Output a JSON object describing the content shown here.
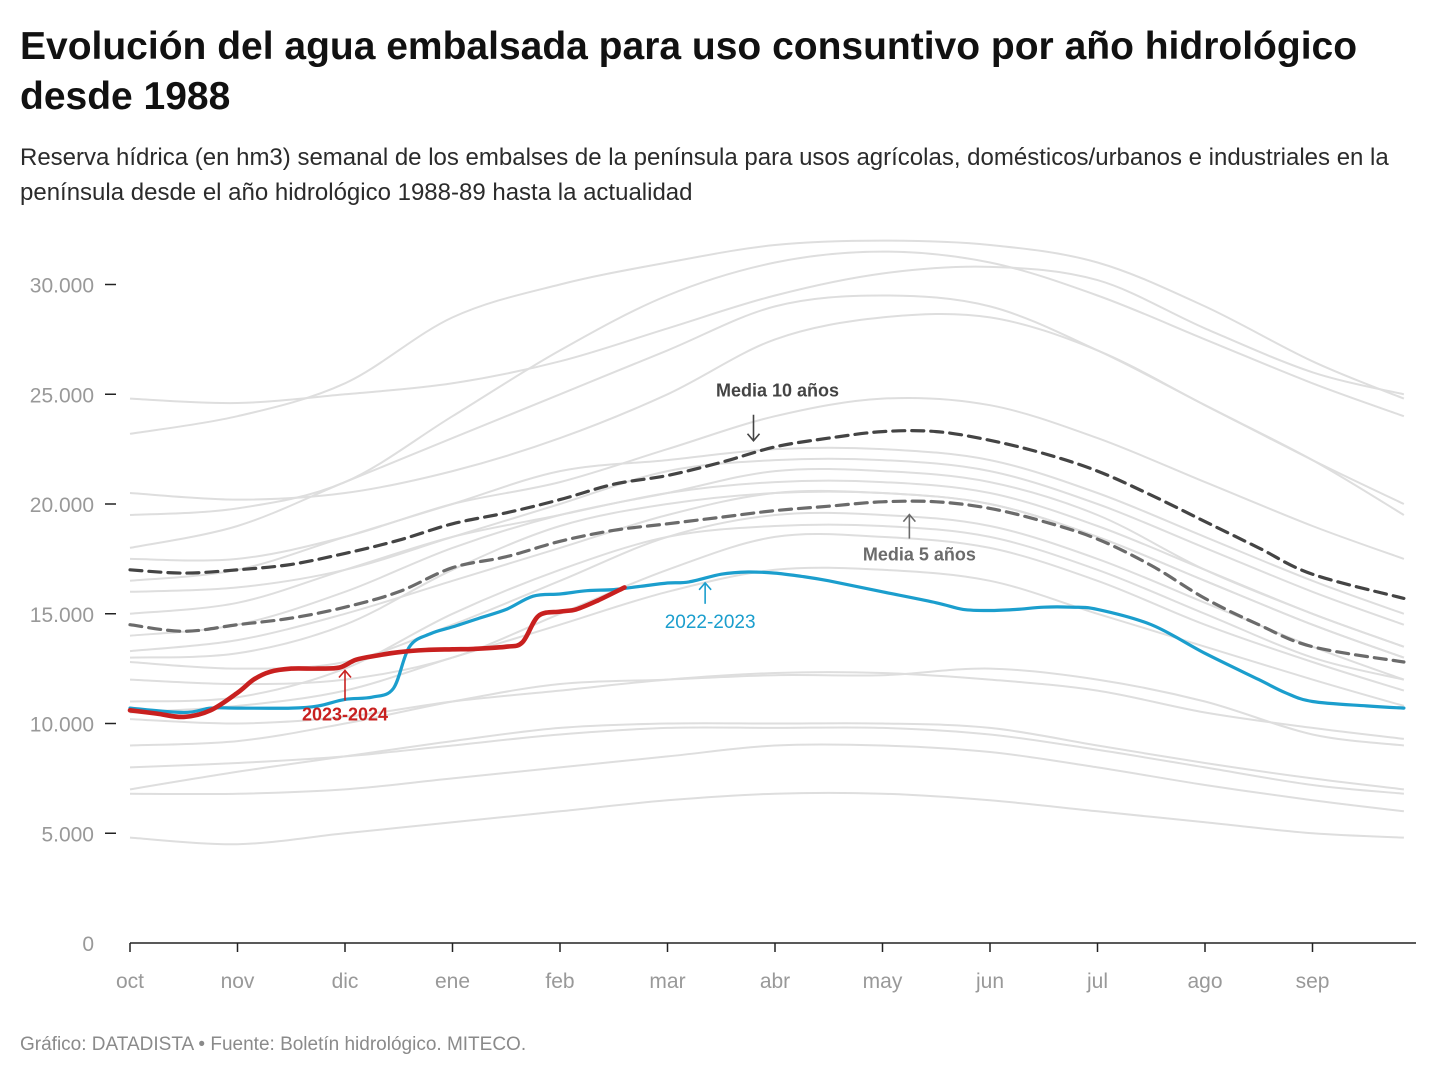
{
  "title": "Evolución del agua embalsada para uso consuntivo por año hidrológico desde 1988",
  "subtitle": "Reserva hídrica (en hm3) semanal de los embalses de la península para usos agrícolas, domésticos/urbanos e industriales en la península desde el año hidrológico 1988-89 hasta la actualidad",
  "footer": "Gráfico: DATADISTA • Fuente: Boletín hidrológico. MITECO.",
  "colors": {
    "historic": "#dedede",
    "current": "#c8201f",
    "previous": "#1b9ecd",
    "media10": "#444444",
    "media5": "#6b6b6b",
    "axis": "#222222",
    "tick_text": "#999999"
  },
  "chart_data": {
    "type": "line",
    "title": "",
    "xlabel": "",
    "ylabel": "",
    "x_unit": "months into hydrological year (0 = 1 Oct)",
    "xlim": [
      0,
      12
    ],
    "ylim": [
      0,
      32000
    ],
    "x_ticks": [
      {
        "x": 0,
        "label": "oct"
      },
      {
        "x": 1,
        "label": "nov"
      },
      {
        "x": 2,
        "label": "dic"
      },
      {
        "x": 3,
        "label": "ene"
      },
      {
        "x": 4,
        "label": "feb"
      },
      {
        "x": 5,
        "label": "mar"
      },
      {
        "x": 6,
        "label": "abr"
      },
      {
        "x": 7,
        "label": "may"
      },
      {
        "x": 8,
        "label": "jun"
      },
      {
        "x": 9,
        "label": "jul"
      },
      {
        "x": 10,
        "label": "ago"
      },
      {
        "x": 11,
        "label": "sep"
      }
    ],
    "y_ticks": [
      {
        "y": 0,
        "label": "0"
      },
      {
        "y": 5000,
        "label": "5.000"
      },
      {
        "y": 10000,
        "label": "10.000"
      },
      {
        "y": 15000,
        "label": "15.000"
      },
      {
        "y": 20000,
        "label": "20.000"
      },
      {
        "y": 25000,
        "label": "25.000"
      },
      {
        "y": 30000,
        "label": "30.000"
      }
    ],
    "grid": false,
    "historic_x": [
      0,
      1,
      2,
      3,
      4,
      5,
      6,
      7,
      8,
      9,
      10,
      11,
      11.85
    ],
    "historic_years": [
      [
        24800,
        24600,
        25000,
        25500,
        26500,
        28000,
        29500,
        30500,
        30800,
        30200,
        28000,
        26000,
        25000
      ],
      [
        23200,
        24000,
        25500,
        28500,
        30000,
        31000,
        31800,
        32000,
        31800,
        31000,
        29000,
        26500,
        24800
      ],
      [
        19500,
        19800,
        21000,
        24000,
        27000,
        29500,
        31000,
        31500,
        31000,
        29500,
        27500,
        25500,
        24000
      ],
      [
        20500,
        20200,
        20500,
        21500,
        23000,
        25000,
        27500,
        28500,
        28500,
        27000,
        24500,
        22000,
        20000
      ],
      [
        18000,
        19000,
        21000,
        23000,
        25000,
        27000,
        29000,
        29500,
        29000,
        27000,
        24500,
        22000,
        19500
      ],
      [
        17500,
        17500,
        18500,
        20000,
        21000,
        22500,
        24000,
        24800,
        24500,
        23000,
        21000,
        19000,
        17500
      ],
      [
        16500,
        17000,
        18500,
        20000,
        21500,
        22000,
        22500,
        22500,
        22000,
        20500,
        18500,
        16500,
        15000
      ],
      [
        16000,
        16200,
        17000,
        18500,
        20000,
        21500,
        22000,
        22000,
        21500,
        20000,
        18000,
        16000,
        14500
      ],
      [
        15000,
        15500,
        17000,
        18500,
        19500,
        20500,
        21000,
        21000,
        20500,
        19000,
        17000,
        15000,
        13500
      ],
      [
        14000,
        14500,
        16000,
        18000,
        19500,
        20500,
        21500,
        21500,
        21000,
        19500,
        17000,
        15000,
        13500
      ],
      [
        13300,
        13800,
        15000,
        16500,
        18000,
        19500,
        20500,
        20500,
        20000,
        18500,
        16500,
        14500,
        13000
      ],
      [
        13000,
        13200,
        14500,
        17000,
        19000,
        20000,
        20500,
        20500,
        20000,
        18500,
        16500,
        14500,
        13000
      ],
      [
        12800,
        12500,
        12800,
        14500,
        16500,
        18500,
        19500,
        19500,
        19000,
        17500,
        15500,
        13500,
        12000
      ],
      [
        12000,
        11800,
        12000,
        13000,
        15000,
        17000,
        18500,
        18500,
        18000,
        16500,
        14500,
        12800,
        11500
      ],
      [
        11000,
        11200,
        12500,
        15000,
        17000,
        18500,
        19000,
        19000,
        18500,
        17000,
        15000,
        13000,
        12000
      ],
      [
        10500,
        10800,
        11500,
        13000,
        14500,
        16000,
        17000,
        17000,
        16500,
        15000,
        13500,
        12000,
        10800
      ],
      [
        10200,
        10000,
        10300,
        11000,
        11500,
        12000,
        12300,
        12300,
        12000,
        11500,
        10500,
        9800,
        9300
      ],
      [
        9000,
        9200,
        10000,
        11000,
        11800,
        12000,
        12200,
        12200,
        12500,
        12000,
        11000,
        9500,
        9000
      ],
      [
        8000,
        8200,
        8500,
        9000,
        9500,
        9800,
        9800,
        9800,
        9500,
        8800,
        8000,
        7200,
        6800
      ],
      [
        7000,
        7800,
        8500,
        9200,
        9800,
        10000,
        10000,
        10000,
        9800,
        9000,
        8200,
        7500,
        7000
      ],
      [
        6800,
        6800,
        7000,
        7500,
        8000,
        8500,
        9000,
        9000,
        8700,
        8000,
        7200,
        6500,
        6000
      ],
      [
        4800,
        4500,
        5000,
        5500,
        6000,
        6500,
        6800,
        6800,
        6500,
        6000,
        5500,
        5000,
        4800
      ]
    ],
    "series": [
      {
        "name": "Media 10 años",
        "style": "dashed",
        "x": [
          0,
          0.5,
          1,
          1.5,
          2,
          2.5,
          3,
          3.5,
          4,
          4.5,
          5,
          5.5,
          6,
          6.5,
          7,
          7.5,
          8,
          8.5,
          9,
          9.5,
          10,
          10.5,
          11,
          11.85
        ],
        "values": [
          17000,
          16850,
          17000,
          17250,
          17750,
          18350,
          19100,
          19600,
          20200,
          20900,
          21300,
          21900,
          22600,
          23000,
          23300,
          23300,
          22900,
          22300,
          21500,
          20400,
          19200,
          18000,
          16800,
          15700
        ]
      },
      {
        "name": "Media 5 años",
        "style": "dashed",
        "x": [
          0,
          0.5,
          1,
          1.5,
          2,
          2.5,
          3,
          3.5,
          4,
          4.5,
          5,
          5.5,
          6,
          6.5,
          7,
          7.5,
          8,
          8.5,
          9,
          9.5,
          10,
          10.5,
          11,
          11.85
        ],
        "values": [
          14500,
          14200,
          14500,
          14800,
          15300,
          16000,
          17100,
          17600,
          18300,
          18800,
          19100,
          19400,
          19700,
          19900,
          20100,
          20100,
          19800,
          19200,
          18400,
          17200,
          15700,
          14500,
          13500,
          12800
        ]
      },
      {
        "name": "2022-2023",
        "style": "solid",
        "x": [
          0,
          0.5,
          0.75,
          1,
          1.5,
          1.75,
          2,
          2.25,
          2.45,
          2.6,
          2.8,
          3,
          3.25,
          3.5,
          3.75,
          4,
          4.25,
          4.5,
          4.75,
          5,
          5.2,
          5.5,
          5.75,
          6,
          6.25,
          6.5,
          7,
          7.5,
          7.75,
          8,
          8.25,
          8.5,
          8.75,
          9,
          9.5,
          10,
          10.5,
          10.75,
          11,
          11.5,
          11.85
        ],
        "values": [
          10700,
          10500,
          10700,
          10700,
          10700,
          10800,
          11100,
          11200,
          11600,
          13500,
          14100,
          14400,
          14800,
          15200,
          15800,
          15900,
          16050,
          16100,
          16250,
          16400,
          16450,
          16800,
          16900,
          16850,
          16700,
          16500,
          16000,
          15500,
          15200,
          15150,
          15200,
          15300,
          15300,
          15200,
          14500,
          13200,
          12000,
          11400,
          11000,
          10800,
          10700
        ]
      },
      {
        "name": "2023-2024",
        "style": "solid",
        "x": [
          0,
          0.25,
          0.5,
          0.75,
          1,
          1.15,
          1.3,
          1.5,
          1.75,
          1.95,
          2.1,
          2.3,
          2.5,
          2.75,
          3,
          3.2,
          3.5,
          3.65,
          3.8,
          4,
          4.15,
          4.35,
          4.6
        ],
        "values": [
          10600,
          10450,
          10300,
          10600,
          11400,
          12000,
          12350,
          12500,
          12500,
          12550,
          12900,
          13100,
          13250,
          13350,
          13380,
          13400,
          13500,
          13700,
          14900,
          15100,
          15200,
          15600,
          16200
        ]
      }
    ],
    "annotations": [
      {
        "text": "Media 10 años",
        "series": "Media 10 años",
        "x": 5.8,
        "y": 22700
      },
      {
        "text": "Media 5 años",
        "series": "Media 5 años",
        "x": 7.25,
        "y": 19700
      },
      {
        "text": "2022-2023",
        "series": "2022-2023",
        "x": 5.35,
        "y": 16500
      },
      {
        "text": "2023-2024",
        "series": "2023-2024",
        "x": 2.0,
        "y": 12550
      }
    ]
  }
}
